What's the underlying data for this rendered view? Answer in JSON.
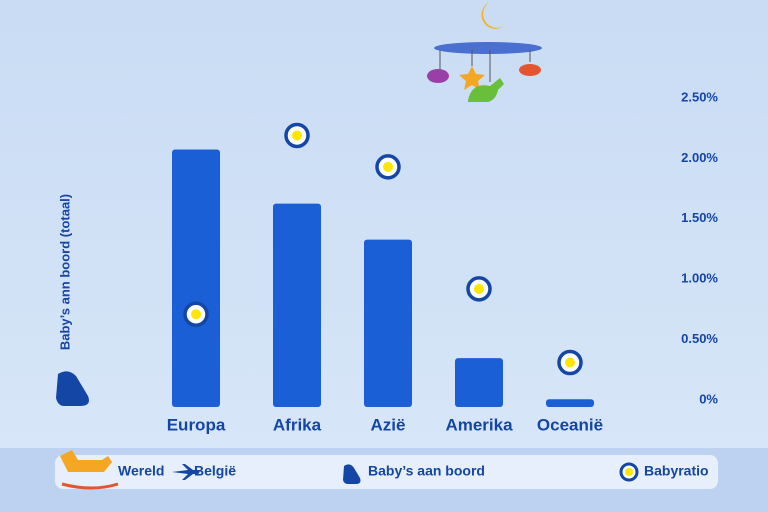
{
  "chart_data": {
    "type": "bar",
    "y_label": "Baby’s ann boord (totaal)",
    "categories": [
      "Europa",
      "Afrika",
      "Azië",
      "Amerika",
      "Oceanië"
    ],
    "series": [
      {
        "name": "Baby’s aan boord",
        "color": "#1a5fd6",
        "values": [
          100,
          79,
          65,
          19,
          3
        ]
      },
      {
        "name": "Babyratio",
        "color": "#ffe600",
        "axis": "y2",
        "values": [
          0.71,
          2.19,
          1.93,
          0.92,
          0.31
        ]
      }
    ],
    "ylim": [
      0,
      120
    ],
    "y2lim": [
      0,
      2.5
    ],
    "y2ticks": [
      {
        "value": 0,
        "label": "0%"
      },
      {
        "value": 0.5,
        "label": "0.50%"
      },
      {
        "value": 1,
        "label": "1.00%"
      },
      {
        "value": 1.5,
        "label": "1.50%"
      },
      {
        "value": 2,
        "label": "2.00%"
      },
      {
        "value": 2.5,
        "label": "2.50%"
      }
    ],
    "route": [
      "Wereld",
      "België"
    ]
  }
}
